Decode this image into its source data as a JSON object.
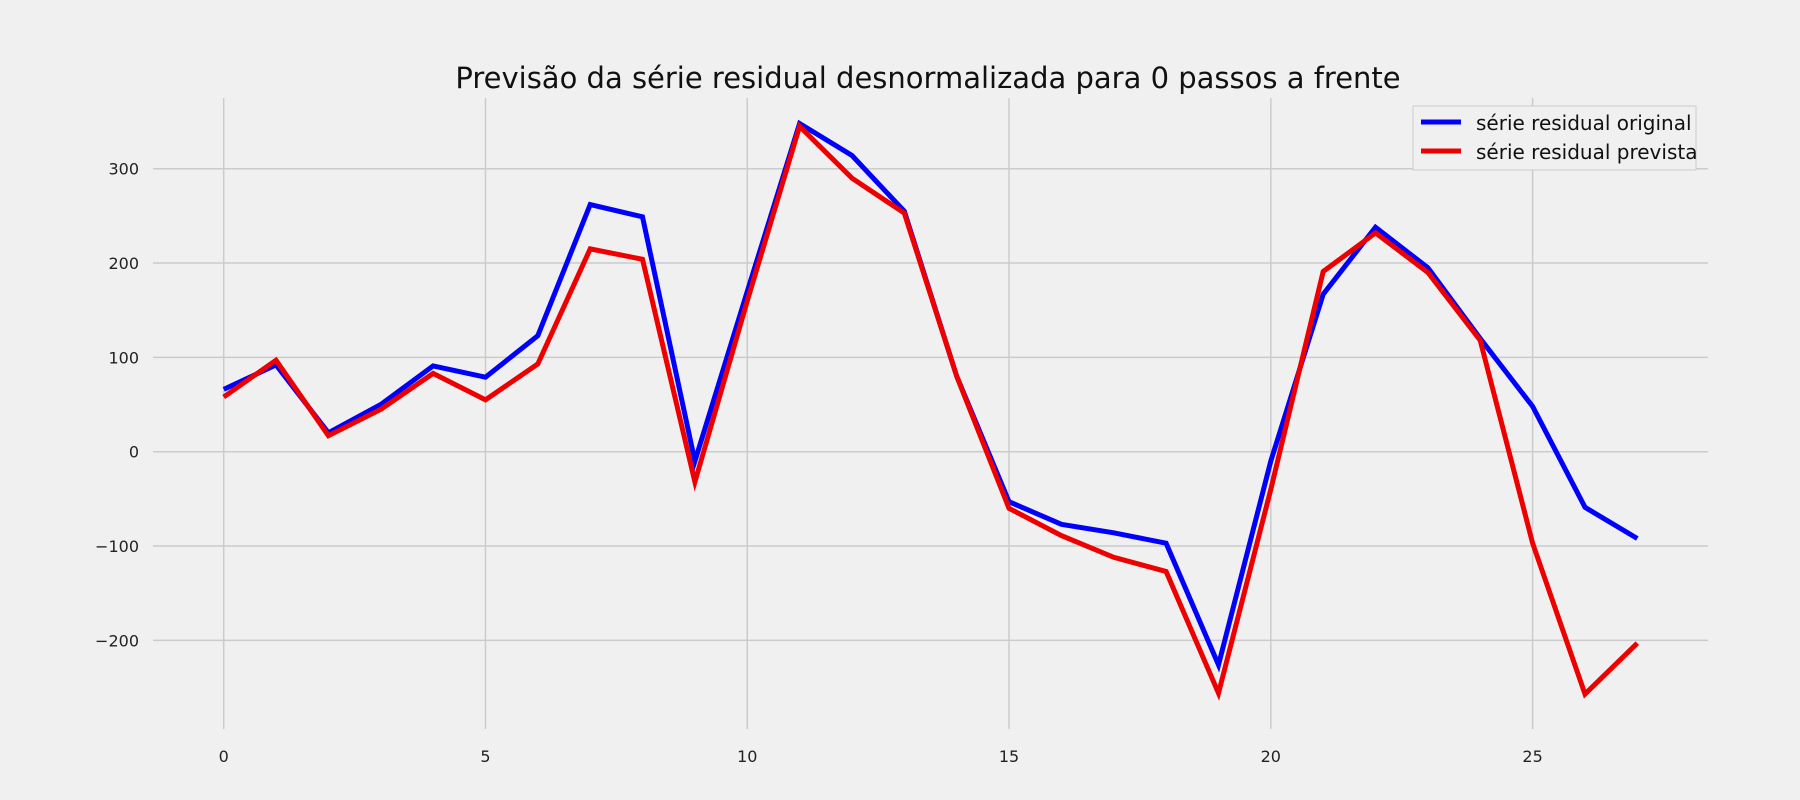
{
  "chart_data": {
    "type": "line",
    "title": "Previsão da série residual desnormalizada para 0 passos a frente",
    "xlabel": "",
    "ylabel": "",
    "x": [
      0,
      1,
      2,
      3,
      4,
      5,
      6,
      7,
      8,
      9,
      10,
      11,
      12,
      13,
      14,
      15,
      16,
      17,
      18,
      19,
      20,
      21,
      22,
      23,
      24,
      25,
      26,
      27
    ],
    "xlim": [
      -1.35,
      28.35
    ],
    "ylim": [
      -294,
      375
    ],
    "x_ticks": [
      0,
      5,
      10,
      15,
      20,
      25
    ],
    "x_tick_labels": [
      "0",
      "5",
      "10",
      "15",
      "20",
      "25"
    ],
    "y_ticks": [
      300,
      200,
      100,
      0,
      -100,
      -200
    ],
    "y_tick_labels": [
      "300",
      "200",
      "100",
      "0",
      "−100",
      "−200"
    ],
    "grid": true,
    "legend_position": "top-right",
    "series": [
      {
        "name": "série residual original",
        "color": "#0000ff",
        "values": [
          66,
          92,
          20,
          50,
          91,
          79,
          123,
          262,
          249,
          -10,
          170,
          348,
          314,
          255,
          80,
          -53,
          -77,
          -86,
          -97,
          -226,
          -10,
          167,
          238,
          195,
          120,
          48,
          -59,
          -92
        ]
      },
      {
        "name": "série residual prevista",
        "color": "#ee0000",
        "values": [
          58,
          97,
          17,
          45,
          83,
          55,
          93,
          215,
          204,
          -32,
          160,
          345,
          290,
          253,
          80,
          -60,
          -89,
          -112,
          -127,
          -256,
          -40,
          191,
          232,
          190,
          118,
          -97,
          -257,
          -203
        ]
      }
    ]
  }
}
